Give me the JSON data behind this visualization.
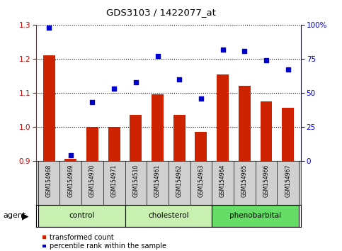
{
  "title": "GDS3103 / 1422077_at",
  "samples": [
    "GSM154968",
    "GSM154969",
    "GSM154970",
    "GSM154971",
    "GSM154510",
    "GSM154961",
    "GSM154962",
    "GSM154963",
    "GSM154964",
    "GSM154965",
    "GSM154966",
    "GSM154967"
  ],
  "bar_values": [
    1.21,
    0.905,
    1.0,
    1.0,
    1.035,
    1.095,
    1.035,
    0.985,
    1.155,
    1.12,
    1.075,
    1.055
  ],
  "scatter_values": [
    98,
    4,
    43,
    53,
    58,
    77,
    60,
    46,
    82,
    81,
    74,
    67
  ],
  "ylim_left": [
    0.9,
    1.3
  ],
  "ylim_right": [
    0,
    100
  ],
  "yticks_left": [
    0.9,
    1.0,
    1.1,
    1.2,
    1.3
  ],
  "yticks_right": [
    0,
    25,
    50,
    75,
    100
  ],
  "bar_color": "#cc2200",
  "scatter_color": "#0000cc",
  "bar_width": 0.55,
  "tick_area_color": "#d0d0d0",
  "group_defs": [
    {
      "start": 0,
      "end": 3,
      "label": "control",
      "color": "#c8f0b0"
    },
    {
      "start": 4,
      "end": 7,
      "label": "cholesterol",
      "color": "#c8f0b0"
    },
    {
      "start": 8,
      "end": 11,
      "label": "phenobarbital",
      "color": "#66dd66"
    }
  ],
  "agent_label": "agent",
  "legend_bar": "transformed count",
  "legend_scatter": "percentile rank within the sample",
  "left_label_color": "#cc0000",
  "right_label_color": "#0000cc"
}
